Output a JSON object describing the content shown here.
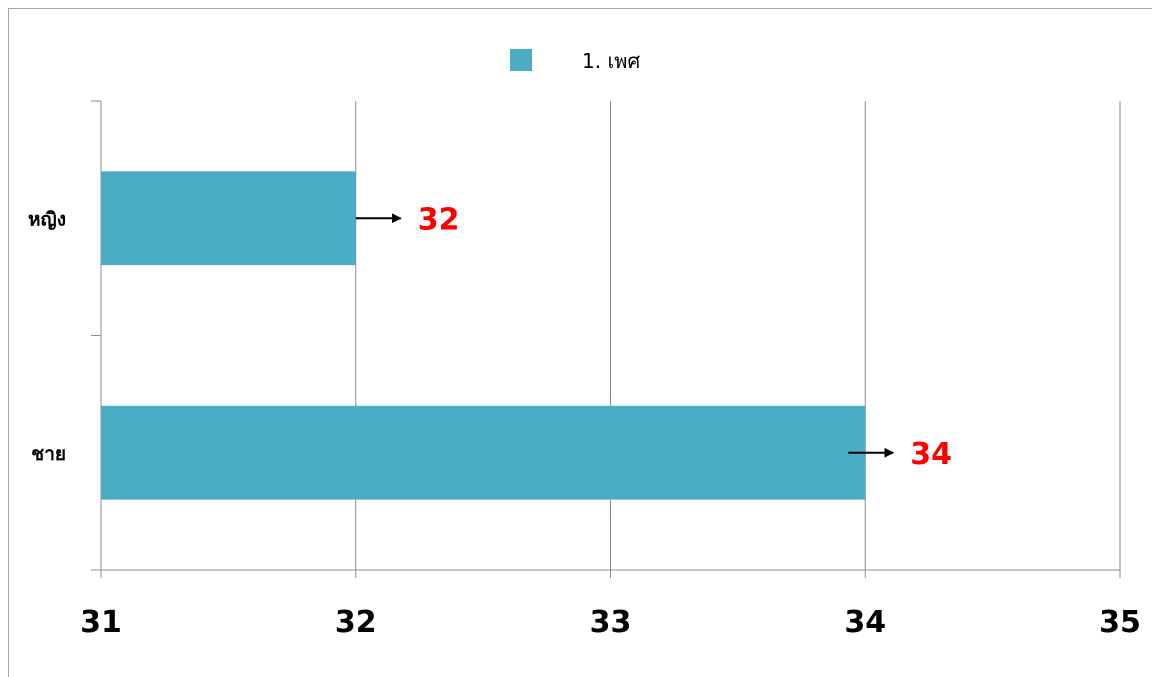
{
  "chart_data": {
    "type": "bar",
    "orientation": "horizontal",
    "categories": [
      "หญิง",
      "ชาย"
    ],
    "series": [
      {
        "name": "1. เพศ",
        "values": [
          32,
          34
        ],
        "color": "#4bacc6"
      }
    ],
    "xlim": [
      31,
      35
    ],
    "xticks": [
      31,
      32,
      33,
      34,
      35
    ],
    "grid": true,
    "legend": "top-center",
    "annotation_color": "#ff0000",
    "annotations": [
      "32",
      "34"
    ]
  }
}
